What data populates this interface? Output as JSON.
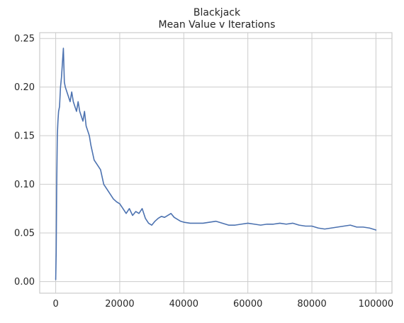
{
  "chart_data": {
    "type": "line",
    "title": "Blackjack",
    "subtitle": "Mean Value v Iterations",
    "xlabel": "",
    "ylabel": "",
    "xlim": [
      -5000,
      105000
    ],
    "ylim": [
      -0.012,
      0.256
    ],
    "x_ticks": [
      0,
      20000,
      40000,
      60000,
      80000,
      100000
    ],
    "x_tick_labels": [
      "0",
      "20000",
      "40000",
      "60000",
      "80000",
      "100000"
    ],
    "y_ticks": [
      0.0,
      0.05,
      0.1,
      0.15,
      0.2,
      0.25
    ],
    "y_tick_labels": [
      "0.00",
      "0.05",
      "0.10",
      "0.15",
      "0.20",
      "0.25"
    ],
    "grid": true,
    "legend": "none",
    "colors": {
      "series": "#4c72b0",
      "grid": "#cccccc",
      "text": "#262626"
    },
    "series": [
      {
        "x": [
          0,
          150,
          300,
          500,
          700,
          900,
          1200,
          1500,
          1800,
          2100,
          2400,
          2700,
          3000,
          3500,
          4000,
          4500,
          5000,
          5500,
          6000,
          6500,
          7000,
          7500,
          8000,
          8500,
          9000,
          9500,
          10000,
          10500,
          11000,
          12000,
          13000,
          14000,
          15000,
          16000,
          17000,
          18000,
          19000,
          20000,
          21000,
          22000,
          23000,
          24000,
          25000,
          26000,
          27000,
          28000,
          29000,
          30000,
          31000,
          32000,
          33000,
          34000,
          35000,
          36000,
          37000,
          38000,
          39000,
          40000,
          42000,
          44000,
          46000,
          48000,
          50000,
          52000,
          54000,
          56000,
          58000,
          60000,
          62000,
          64000,
          66000,
          68000,
          70000,
          72000,
          74000,
          76000,
          78000,
          80000,
          82000,
          84000,
          86000,
          88000,
          90000,
          92000,
          94000,
          96000,
          98000,
          100000
        ],
        "y": [
          0.002,
          0.03,
          0.095,
          0.15,
          0.165,
          0.175,
          0.18,
          0.2,
          0.21,
          0.225,
          0.24,
          0.205,
          0.2,
          0.195,
          0.19,
          0.185,
          0.195,
          0.185,
          0.18,
          0.175,
          0.185,
          0.175,
          0.17,
          0.165,
          0.175,
          0.16,
          0.155,
          0.15,
          0.14,
          0.125,
          0.12,
          0.115,
          0.1,
          0.095,
          0.09,
          0.085,
          0.082,
          0.08,
          0.075,
          0.07,
          0.075,
          0.068,
          0.072,
          0.07,
          0.075,
          0.065,
          0.06,
          0.058,
          0.062,
          0.065,
          0.067,
          0.066,
          0.068,
          0.07,
          0.066,
          0.064,
          0.062,
          0.061,
          0.06,
          0.06,
          0.06,
          0.061,
          0.062,
          0.06,
          0.058,
          0.058,
          0.059,
          0.06,
          0.059,
          0.058,
          0.059,
          0.059,
          0.06,
          0.059,
          0.06,
          0.058,
          0.057,
          0.057,
          0.055,
          0.054,
          0.055,
          0.056,
          0.057,
          0.058,
          0.056,
          0.056,
          0.055,
          0.053
        ]
      }
    ]
  }
}
